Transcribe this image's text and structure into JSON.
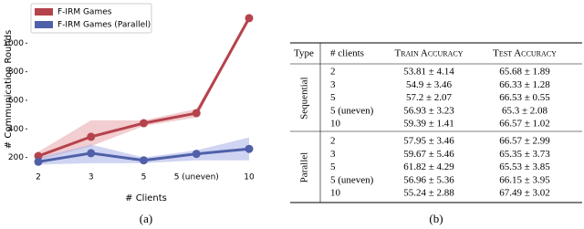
{
  "chart_data": {
    "type": "line",
    "xlabel": "# Clients",
    "ylabel": "# Communication Rounds",
    "categories": [
      "2",
      "3",
      "5",
      "5 (uneven)",
      "10"
    ],
    "series": [
      {
        "name": "F-IRM Games",
        "color": "#b5434c",
        "band_color": "#e8a5aa",
        "values": [
          210,
          345,
          440,
          510,
          1175
        ],
        "lower": [
          180,
          280,
          420,
          480,
          1175
        ],
        "upper": [
          240,
          460,
          460,
          540,
          1175
        ]
      },
      {
        "name": "F-IRM Games (Parallel)",
        "color": "#5060a8",
        "band_color": "#a8b0e8",
        "values": [
          170,
          230,
          180,
          225,
          260
        ],
        "lower": [
          150,
          160,
          160,
          180,
          180
        ],
        "upper": [
          200,
          290,
          200,
          250,
          340
        ]
      }
    ],
    "ylim": [
      140,
      1270
    ],
    "yticks": [
      200,
      400,
      600,
      800,
      1000
    ],
    "legend": "upper left",
    "grid": false
  },
  "captions": [
    "(a)",
    "(b)"
  ],
  "table": {
    "header": [
      "Type",
      "# clients",
      "Train Accuracy",
      "Test Accuracy"
    ],
    "groups": [
      {
        "label": "Sequential",
        "rows": [
          [
            "2",
            "53.81 ± 4.14",
            "65.68 ± 1.89"
          ],
          [
            "3",
            "54.9 ± 3.46",
            "66.33 ± 1.28"
          ],
          [
            "5",
            "57.2 ± 2.07",
            "66.53 ± 0.55"
          ],
          [
            "5 (uneven)",
            "56.93 ± 3.23",
            "65.3 ± 2.08"
          ],
          [
            "10",
            "59.39 ± 1.41",
            "66.57 ± 1.02"
          ]
        ]
      },
      {
        "label": "Parallel",
        "rows": [
          [
            "2",
            "57.95 ± 3.46",
            "66.57 ± 2.99"
          ],
          [
            "3",
            "59.67 ± 5.46",
            "65.35 ± 3.73"
          ],
          [
            "5",
            "61.82 ± 4.29",
            "65.53 ± 3.85"
          ],
          [
            "5 (uneven)",
            "56.96 ± 5.36",
            "66.15 ± 3.95"
          ],
          [
            "10",
            "55.24 ± 2.88",
            "67.49 ± 3.02"
          ]
        ]
      }
    ]
  }
}
